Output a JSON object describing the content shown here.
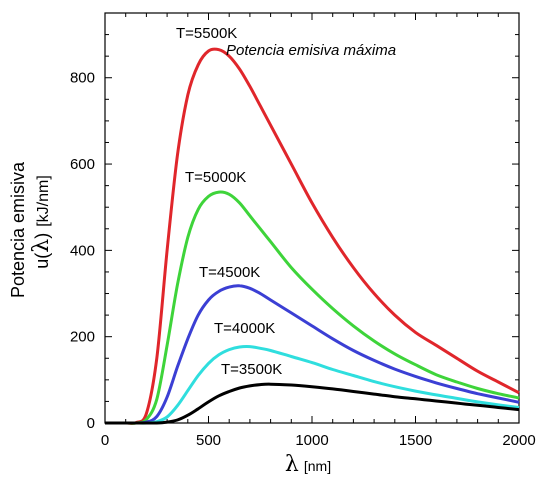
{
  "chart_data": {
    "type": "line",
    "xlim": [
      0,
      2000
    ],
    "ylim": [
      0,
      950
    ],
    "xticks": [
      0,
      500,
      1000,
      1500,
      2000
    ],
    "yticks": [
      0,
      200,
      400,
      600,
      800
    ],
    "xlabel_symbol": "λ",
    "xlabel_unit": "[nm]",
    "ylabel_line1": "Potencia emisiva",
    "ylabel_prefix": "u(",
    "ylabel_symbol": "λ",
    "ylabel_suffix": ")",
    "ylabel_unit": "[kJ/nm]",
    "annotation": "Potencia emisiva máxima",
    "grid": false,
    "x": [
      100,
      150,
      200,
      250,
      300,
      350,
      400,
      450,
      500,
      550,
      600,
      650,
      700,
      750,
      800,
      900,
      1000,
      1100,
      1200,
      1300,
      1400,
      1500,
      1600,
      1700,
      1800,
      1900,
      2000
    ],
    "series": [
      {
        "name": "T=5500K",
        "color": "#e0262b",
        "values": [
          0,
          1,
          22,
          150,
          400,
          620,
          760,
          830,
          862,
          865,
          850,
          820,
          780,
          735,
          690,
          600,
          510,
          430,
          360,
          300,
          250,
          210,
          180,
          150,
          120,
          95,
          70
        ]
      },
      {
        "name": "T=5000K",
        "color": "#3ed43a",
        "values": [
          0,
          0,
          8,
          55,
          180,
          320,
          430,
          495,
          525,
          535,
          530,
          510,
          480,
          450,
          420,
          360,
          310,
          265,
          225,
          190,
          160,
          135,
          112,
          95,
          80,
          68,
          58
        ]
      },
      {
        "name": "T=4500K",
        "color": "#3b3fd4",
        "values": [
          0,
          0,
          2,
          15,
          60,
          130,
          195,
          250,
          285,
          305,
          315,
          318,
          312,
          300,
          285,
          255,
          225,
          195,
          168,
          145,
          125,
          108,
          93,
          80,
          68,
          58,
          48
        ]
      },
      {
        "name": "T=4000K",
        "color": "#2fdede",
        "values": [
          0,
          0,
          0,
          3,
          14,
          40,
          75,
          110,
          138,
          158,
          170,
          176,
          177,
          173,
          168,
          154,
          140,
          124,
          110,
          96,
          84,
          74,
          65,
          57,
          49,
          42,
          36
        ]
      },
      {
        "name": "T=3500K",
        "color": "#000000",
        "values": [
          0,
          0,
          0,
          0,
          2,
          7,
          18,
          33,
          49,
          63,
          73,
          81,
          86,
          89,
          90,
          88,
          84,
          79,
          73,
          67,
          61,
          56,
          51,
          46,
          41,
          36,
          31
        ]
      }
    ]
  }
}
